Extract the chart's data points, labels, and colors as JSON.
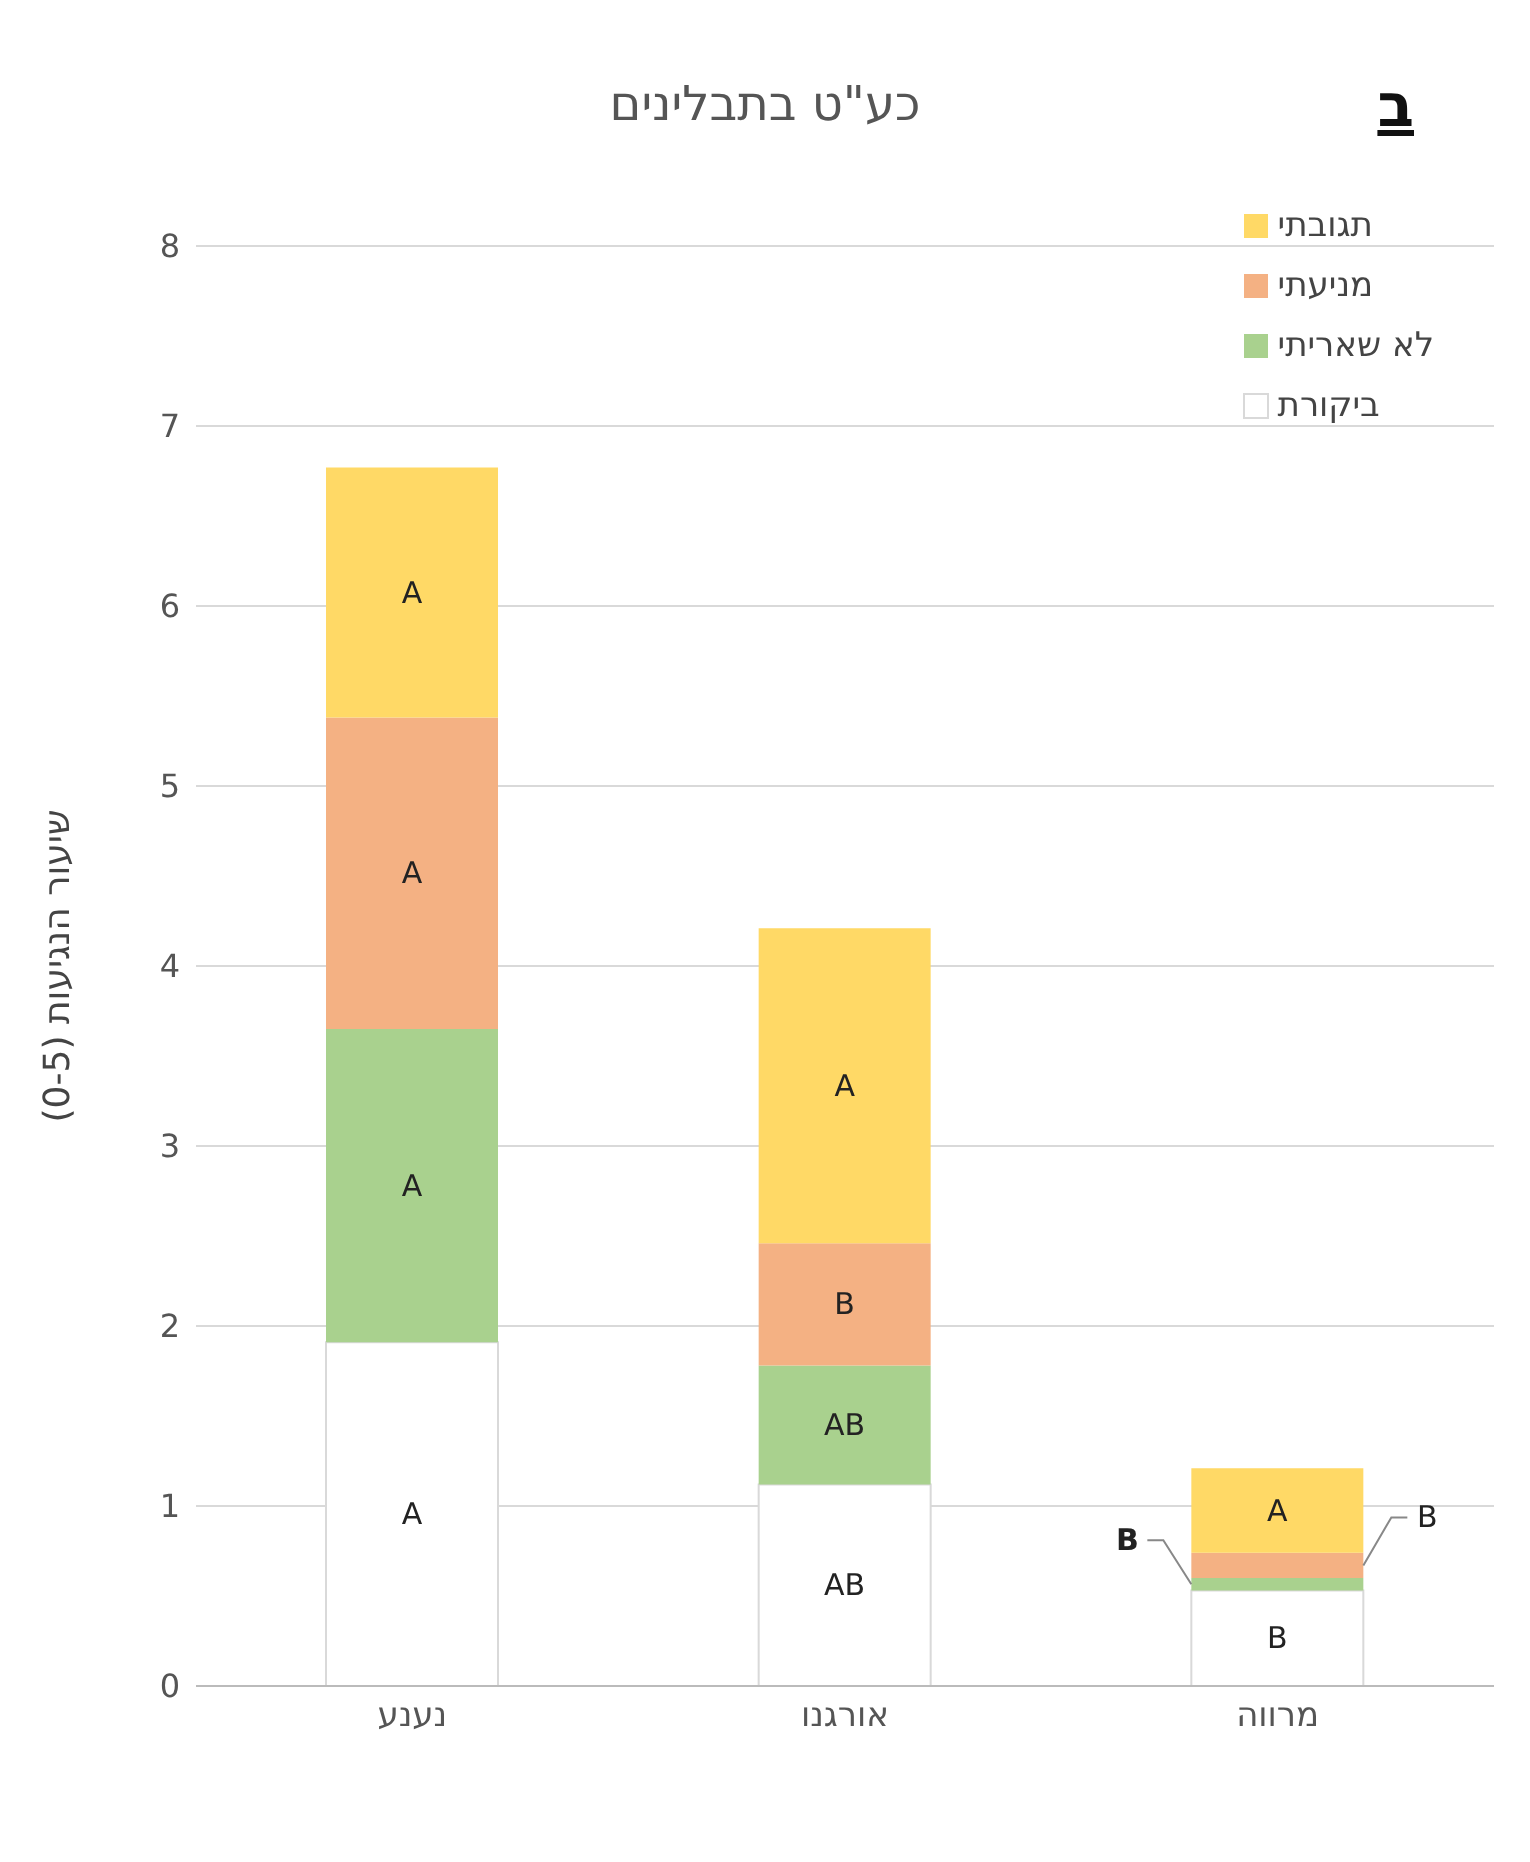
{
  "chart_data": {
    "type": "bar",
    "title": "כע\"ט בתבלינים",
    "ylabel": "שיעור הנגיעות (0-5)",
    "annotations": [
      "ב"
    ],
    "categories": [
      "נענע",
      "אורגנו",
      "מרווה"
    ],
    "stacked": true,
    "series": [
      {
        "name": "ביקורת",
        "color": "#ffffff",
        "values": [
          1.91,
          1.12,
          0.53
        ],
        "value_labels": [
          "A",
          "AB",
          "B"
        ]
      },
      {
        "name": "לא שאריתי",
        "color": "#a9d18e",
        "values": [
          1.74,
          0.66,
          0.07
        ],
        "value_labels": [
          "A",
          "AB",
          "B"
        ]
      },
      {
        "name": "מניעתי",
        "color": "#f4b183",
        "values": [
          1.73,
          0.68,
          0.14
        ],
        "value_labels": [
          "A",
          "B",
          "B"
        ]
      },
      {
        "name": "תגובתי",
        "color": "#ffd966",
        "values": [
          1.39,
          1.75,
          0.47
        ],
        "value_labels": [
          "A",
          "A",
          "A"
        ]
      }
    ],
    "ylim": [
      0,
      8
    ],
    "yticks": [
      0,
      1,
      2,
      3,
      4,
      5,
      6,
      7,
      8
    ],
    "grid": "y",
    "legend": "top right"
  }
}
